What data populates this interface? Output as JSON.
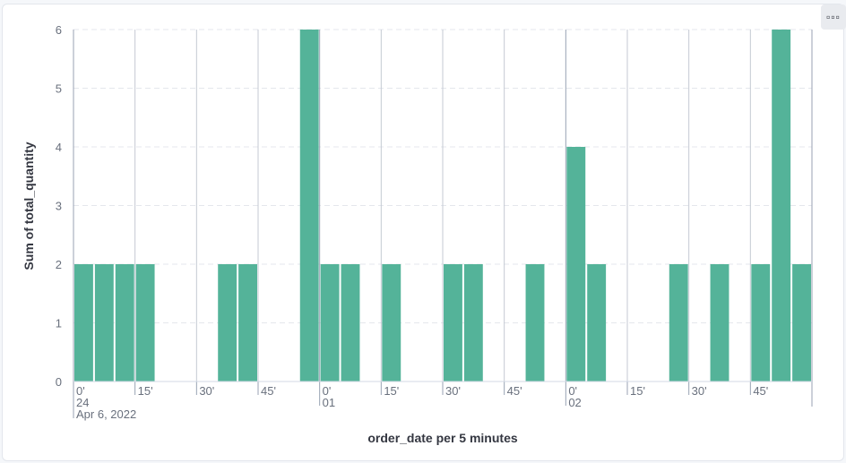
{
  "chart_data": {
    "type": "bar",
    "xlabel": "order_date per 5 minutes",
    "ylabel": "Sum of total_quantity",
    "ylim": [
      0,
      6
    ],
    "y_ticks": [
      0,
      1,
      2,
      3,
      4,
      5,
      6
    ],
    "x_ticks": [
      {
        "label": "0'",
        "sub": "24",
        "sub2": "Apr 6, 2022"
      },
      {
        "label": "15'"
      },
      {
        "label": "30'"
      },
      {
        "label": "45'"
      },
      {
        "label": "0'",
        "sub": "01"
      },
      {
        "label": "15'"
      },
      {
        "label": "30'"
      },
      {
        "label": "45'"
      },
      {
        "label": "0'",
        "sub": "02"
      },
      {
        "label": "15'"
      },
      {
        "label": "30'"
      },
      {
        "label": "45'"
      }
    ],
    "bucket_minutes": 5,
    "values": [
      2,
      2,
      2,
      2,
      0,
      0,
      0,
      2,
      2,
      0,
      0,
      6,
      2,
      2,
      0,
      2,
      0,
      0,
      2,
      2,
      0,
      0,
      2,
      0,
      4,
      2,
      0,
      0,
      0,
      2,
      0,
      2,
      0,
      2,
      6,
      2
    ],
    "bar_color": "#54b399",
    "grid": true,
    "legend": "none"
  },
  "menu": {
    "icon": "more-horizontal-icon"
  }
}
